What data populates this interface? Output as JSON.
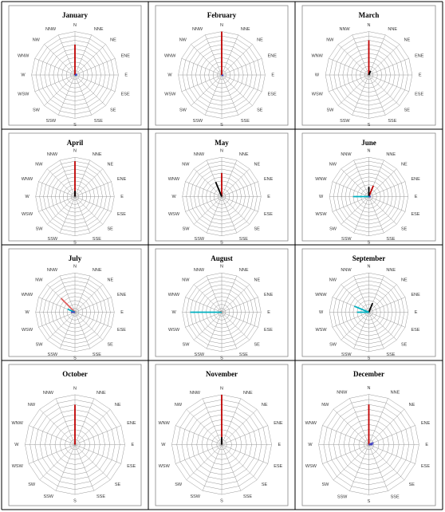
{
  "chart_data": [
    {
      "type": "windrose",
      "title": "January",
      "categories": [
        "N",
        "NNE",
        "NE",
        "ENE",
        "E",
        "ESE",
        "SE",
        "SSE",
        "S",
        "SSW",
        "SW",
        "WSW",
        "W",
        "WNW",
        "NW",
        "NNW"
      ],
      "rlim": [
        0,
        10
      ],
      "rticks": [
        1,
        2,
        3,
        4,
        5,
        6,
        7,
        8,
        9,
        10
      ],
      "grid": true,
      "series": [
        {
          "color": "#c00000",
          "values": [
            7,
            0,
            0,
            0,
            0,
            0,
            0,
            0,
            0,
            0,
            0,
            0,
            0,
            0,
            0,
            0
          ]
        },
        {
          "color": "#00b0c0",
          "values": [
            0,
            0,
            0,
            0,
            0,
            0.4,
            0,
            0,
            0,
            0,
            0,
            0,
            0,
            0,
            0,
            0
          ]
        },
        {
          "color": "#4040c0",
          "values": [
            0,
            0,
            0,
            0.5,
            0.5,
            0,
            0,
            0,
            0,
            0,
            0,
            0,
            0,
            0,
            0,
            0
          ]
        }
      ]
    },
    {
      "type": "windrose",
      "title": "February",
      "categories": [
        "N",
        "NNE",
        "NE",
        "ENE",
        "E",
        "ESE",
        "SE",
        "SSE",
        "S",
        "SSW",
        "SW",
        "WSW",
        "W",
        "WNW",
        "NW",
        "NNW"
      ],
      "rlim": [
        0,
        10
      ],
      "rticks": [
        1,
        2,
        3,
        4,
        5,
        6,
        7,
        8,
        9,
        10
      ],
      "grid": true,
      "series": [
        {
          "color": "#c00000",
          "values": [
            10,
            0,
            0,
            0,
            0,
            0,
            0,
            0,
            0,
            0,
            0,
            0,
            0,
            0,
            0,
            0
          ]
        },
        {
          "color": "#4040c0",
          "values": [
            0,
            0,
            0,
            0,
            0,
            0.4,
            0,
            0,
            0,
            0,
            0,
            0,
            0,
            0,
            0,
            0
          ]
        }
      ]
    },
    {
      "type": "windrose",
      "title": "March",
      "categories": [
        "N",
        "NNE",
        "NE",
        "ENE",
        "E",
        "ESE",
        "SE",
        "SSE",
        "S",
        "SSW",
        "SW",
        "WSW",
        "W",
        "WNW",
        "NW",
        "NNW"
      ],
      "rlim": [
        0,
        10
      ],
      "rticks": [
        1,
        2,
        3,
        4,
        5,
        6,
        7,
        8,
        9,
        10
      ],
      "grid": true,
      "series": [
        {
          "color": "#c00000",
          "values": [
            8,
            0,
            0,
            0,
            0,
            0,
            0,
            0,
            0,
            0,
            0,
            0,
            0,
            0,
            0,
            0
          ]
        },
        {
          "color": "#000000",
          "values": [
            0,
            1,
            0,
            0,
            0,
            0,
            0,
            0,
            0,
            0,
            0,
            0,
            0,
            0,
            0,
            0
          ]
        }
      ]
    },
    {
      "type": "windrose",
      "title": "April",
      "categories": [
        "N",
        "NNE",
        "NE",
        "ENE",
        "E",
        "ESE",
        "SE",
        "SSE",
        "S",
        "SSW",
        "SW",
        "WSW",
        "W",
        "WNW",
        "NW",
        "NNW"
      ],
      "rlim": [
        0,
        10
      ],
      "rticks": [
        1,
        2,
        3,
        4,
        5,
        6,
        7,
        8,
        9,
        10
      ],
      "grid": true,
      "series": [
        {
          "color": "#c00000",
          "values": [
            9,
            0,
            0,
            0,
            0,
            0,
            0,
            0,
            0,
            0,
            0,
            0,
            0,
            0,
            0,
            0
          ]
        },
        {
          "color": "#000000",
          "values": [
            1.5,
            0,
            0,
            0,
            0,
            0,
            0,
            0,
            0,
            0,
            0,
            0,
            0,
            0,
            0,
            0
          ]
        }
      ]
    },
    {
      "type": "windrose",
      "title": "May",
      "categories": [
        "N",
        "NNE",
        "NE",
        "ENE",
        "E",
        "ESE",
        "SE",
        "SSE",
        "S",
        "SSW",
        "SW",
        "WSW",
        "W",
        "WNW",
        "NW",
        "NNW"
      ],
      "rlim": [
        0,
        10
      ],
      "rticks": [
        1,
        2,
        3,
        4,
        5,
        6,
        7,
        8,
        9,
        10
      ],
      "grid": true,
      "series": [
        {
          "color": "#c00000",
          "values": [
            6,
            0,
            0,
            0,
            0,
            0,
            0,
            0,
            0,
            0,
            0,
            0,
            0,
            0,
            0,
            0
          ]
        },
        {
          "color": "#000000",
          "values": [
            0,
            0,
            0,
            0,
            0,
            0,
            0,
            0,
            0,
            0,
            0,
            0,
            0,
            0,
            0,
            4
          ]
        }
      ]
    },
    {
      "type": "windrose",
      "title": "June",
      "categories": [
        "N",
        "NNE",
        "NE",
        "ENE",
        "E",
        "ESE",
        "SE",
        "SSE",
        "S",
        "SSW",
        "SW",
        "WSW",
        "W",
        "WNW",
        "NW",
        "NNW"
      ],
      "rlim": [
        0,
        10
      ],
      "rticks": [
        1,
        2,
        3,
        4,
        5,
        6,
        7,
        8,
        9,
        10
      ],
      "grid": true,
      "series": [
        {
          "color": "#c00000",
          "values": [
            0,
            3,
            0,
            0,
            0,
            0,
            0,
            0,
            0,
            0,
            0,
            0,
            0,
            0,
            0,
            0
          ]
        },
        {
          "color": "#000000",
          "values": [
            2.5,
            0,
            0,
            0,
            0,
            0,
            0,
            0,
            0,
            0,
            0,
            0,
            0,
            0,
            0,
            0
          ]
        },
        {
          "color": "#00b0c0",
          "values": [
            0,
            0,
            0,
            0,
            0,
            0,
            0,
            0,
            0,
            0,
            0,
            0,
            4,
            0,
            0,
            0
          ]
        },
        {
          "color": "#4040c0",
          "values": [
            0,
            0,
            0,
            0,
            0.5,
            0,
            0,
            0,
            0,
            0,
            0,
            0,
            0,
            0,
            0,
            0
          ]
        }
      ]
    },
    {
      "type": "windrose",
      "title": "July",
      "categories": [
        "N",
        "NNE",
        "NE",
        "ENE",
        "E",
        "ESE",
        "SE",
        "SSE",
        "S",
        "SSW",
        "SW",
        "WSW",
        "W",
        "WNW",
        "NW",
        "NNW"
      ],
      "rlim": [
        0,
        10
      ],
      "rticks": [
        1,
        2,
        3,
        4,
        5,
        6,
        7,
        8,
        9,
        10
      ],
      "grid": true,
      "series": [
        {
          "color": "#e06060",
          "values": [
            0,
            0,
            0,
            0,
            0,
            0,
            0,
            0,
            0,
            0,
            0,
            0,
            0,
            0,
            5,
            0
          ]
        },
        {
          "color": "#00b0c0",
          "values": [
            0,
            0,
            0,
            0,
            0,
            0,
            0,
            0,
            0,
            0,
            0,
            0,
            0,
            2,
            0,
            0
          ]
        },
        {
          "color": "#4040c0",
          "values": [
            0,
            0,
            0,
            0,
            0,
            0,
            0,
            0,
            0,
            0,
            0,
            0,
            1,
            0,
            0,
            0
          ]
        }
      ]
    },
    {
      "type": "windrose",
      "title": "August",
      "categories": [
        "N",
        "NNE",
        "NE",
        "ENE",
        "E",
        "ESE",
        "SE",
        "SSE",
        "S",
        "SSW",
        "SW",
        "WSW",
        "W",
        "WNW",
        "NW",
        "NNW"
      ],
      "rlim": [
        0,
        10
      ],
      "rticks": [
        1,
        2,
        3,
        4,
        5,
        6,
        7,
        8,
        9,
        10
      ],
      "grid": true,
      "series": [
        {
          "color": "#e06060",
          "values": [
            0,
            0,
            0,
            0,
            0,
            0,
            0,
            0,
            0,
            0,
            0,
            0,
            0,
            0.5,
            0,
            0
          ]
        },
        {
          "color": "#00b0c0",
          "values": [
            0,
            0,
            0,
            0,
            0,
            0,
            0,
            0,
            0,
            0,
            0,
            0,
            8,
            0,
            0,
            0
          ]
        }
      ]
    },
    {
      "type": "windrose",
      "title": "September",
      "categories": [
        "N",
        "NNE",
        "NE",
        "ENE",
        "E",
        "ESE",
        "SE",
        "SSE",
        "S",
        "SSW",
        "SW",
        "WSW",
        "W",
        "WNW",
        "NW",
        "NNW"
      ],
      "rlim": [
        0,
        10
      ],
      "rticks": [
        1,
        2,
        3,
        4,
        5,
        6,
        7,
        8,
        9,
        10
      ],
      "grid": true,
      "series": [
        {
          "color": "#000000",
          "values": [
            0,
            2.5,
            0,
            0,
            0,
            0,
            0,
            0,
            0,
            0,
            0,
            0,
            0,
            0,
            0,
            0
          ]
        },
        {
          "color": "#00b0c0",
          "values": [
            0,
            0,
            0,
            0,
            0,
            0,
            0,
            0,
            0,
            0,
            0,
            0,
            3,
            4,
            0,
            0
          ]
        }
      ]
    },
    {
      "type": "windrose",
      "title": "October",
      "categories": [
        "N",
        "NNE",
        "NE",
        "ENE",
        "E",
        "ESE",
        "SE",
        "SSE",
        "S",
        "SSW",
        "SW",
        "WSW",
        "W",
        "WNW",
        "NW",
        "NNW"
      ],
      "rlim": [
        0,
        10
      ],
      "rticks": [
        1,
        2,
        3,
        4,
        5,
        6,
        7,
        8,
        9,
        10
      ],
      "grid": true,
      "series": [
        {
          "color": "#c00000",
          "values": [
            8,
            0,
            0,
            0,
            0,
            0,
            0,
            0,
            0,
            0,
            0,
            0,
            0,
            0,
            0,
            0
          ]
        }
      ]
    },
    {
      "type": "windrose",
      "title": "November",
      "categories": [
        "N",
        "NNE",
        "NE",
        "ENE",
        "E",
        "ESE",
        "SE",
        "SSE",
        "S",
        "SSW",
        "SW",
        "WSW",
        "W",
        "WNW",
        "NW",
        "NNW"
      ],
      "rlim": [
        0,
        10
      ],
      "rticks": [
        1,
        2,
        3,
        4,
        5,
        6,
        7,
        8,
        9,
        10
      ],
      "grid": true,
      "series": [
        {
          "color": "#c00000",
          "values": [
            10,
            0,
            0,
            0,
            0,
            0,
            0,
            0,
            0,
            0,
            0,
            0,
            0,
            0,
            0,
            0
          ]
        },
        {
          "color": "#000000",
          "values": [
            1.5,
            0,
            0,
            0,
            0,
            0,
            0,
            0,
            0,
            0,
            0,
            0,
            0,
            0,
            0,
            0
          ]
        }
      ]
    },
    {
      "type": "windrose",
      "title": "December",
      "categories": [
        "N",
        "NNE",
        "NE",
        "ENE",
        "E",
        "ESE",
        "SE",
        "SSE",
        "S",
        "SSW",
        "SW",
        "WSW",
        "W",
        "WNW",
        "NW",
        "NNW"
      ],
      "rlim": [
        0,
        10
      ],
      "rticks": [
        1,
        2,
        3,
        4,
        5,
        6,
        7,
        8,
        9,
        10
      ],
      "grid": true,
      "series": [
        {
          "color": "#c00000",
          "values": [
            8,
            0,
            0,
            0,
            0,
            0,
            0,
            0,
            0,
            0,
            0,
            0,
            0,
            0,
            0,
            0
          ]
        },
        {
          "color": "#4040c0",
          "values": [
            0,
            0,
            0,
            1,
            0.8,
            0,
            0,
            0,
            0,
            0,
            0,
            0,
            0,
            0,
            0,
            0
          ]
        }
      ]
    }
  ]
}
